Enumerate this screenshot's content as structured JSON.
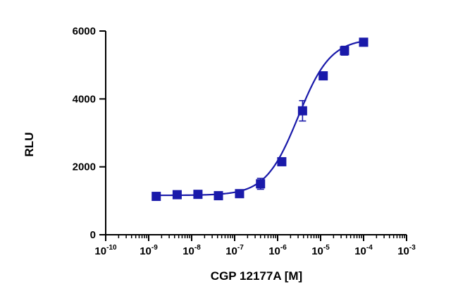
{
  "chart_data": {
    "type": "scatter",
    "title": "",
    "xlabel": "CGP 12177A [M]",
    "ylabel": "RLU",
    "xscale": "log",
    "xlim": [
      1e-10,
      0.001
    ],
    "ylim": [
      0,
      6000
    ],
    "x_tick_labels": [
      {
        "value": 1e-10,
        "base": "10",
        "exp": "-10"
      },
      {
        "value": 1e-09,
        "base": "10",
        "exp": "-9"
      },
      {
        "value": 1e-08,
        "base": "10",
        "exp": "-8"
      },
      {
        "value": 1e-07,
        "base": "10",
        "exp": "-7"
      },
      {
        "value": 1e-06,
        "base": "10",
        "exp": "-6"
      },
      {
        "value": 1e-05,
        "base": "10",
        "exp": "-5"
      },
      {
        "value": 0.0001,
        "base": "10",
        "exp": "-4"
      },
      {
        "value": 0.001,
        "base": "10",
        "exp": "-3"
      }
    ],
    "y_tick_labels": [
      "0",
      "2000",
      "4000",
      "6000"
    ],
    "y_ticks": [
      0,
      2000,
      4000,
      6000
    ],
    "grid": false,
    "series": [
      {
        "color": "#1a1aaa",
        "marker": "square",
        "x": [
          1.5e-09,
          4.6e-09,
          1.4e-08,
          4.2e-08,
          1.3e-07,
          4e-07,
          1.25e-06,
          3.8e-06,
          1.15e-05,
          3.6e-05,
          0.0001
        ],
        "y": [
          1130,
          1180,
          1190,
          1150,
          1210,
          1500,
          2150,
          3650,
          4680,
          5420,
          5670
        ],
        "y_err": [
          40,
          60,
          40,
          50,
          50,
          160,
          50,
          300,
          80,
          130,
          80
        ],
        "fit": {
          "type": "sigmoidal dose-response",
          "bottom": 1160,
          "top": 5780,
          "ec50": 3e-06,
          "hill": 1.15
        }
      }
    ]
  }
}
